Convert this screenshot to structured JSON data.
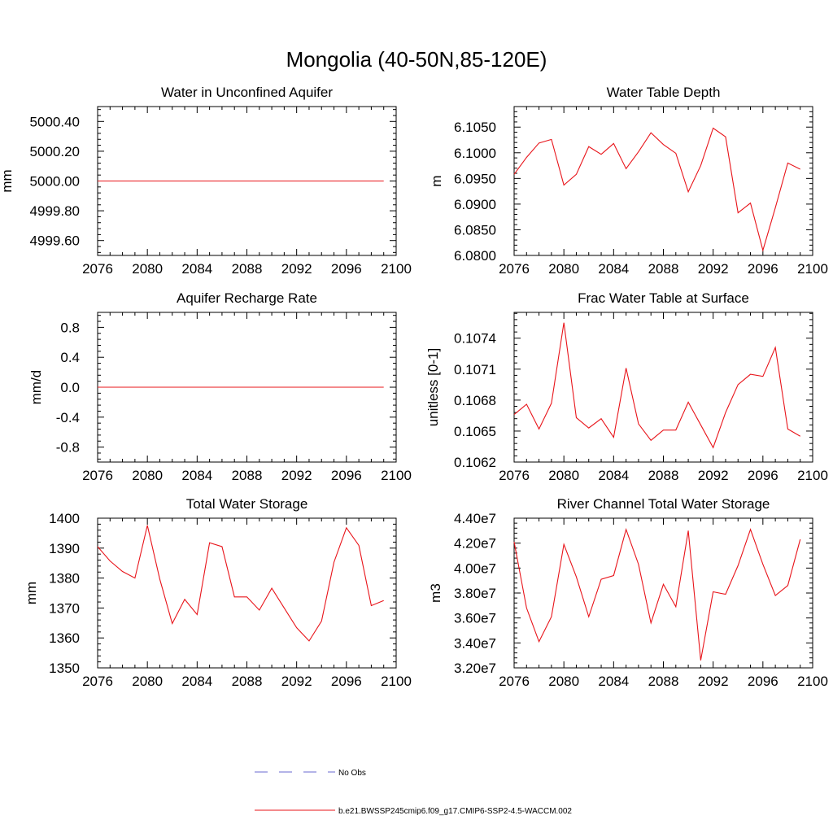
{
  "figure": {
    "title": "Mongolia (40-50N,85-120E)"
  },
  "legend": {
    "items": [
      {
        "label": "No Obs",
        "color": "#6a6ad0",
        "style": "dashed"
      },
      {
        "label": "b.e21.BWSSP245cmip6.f09_g17.CMIP6-SSP2-4.5-WACCM.002",
        "color": "#e8141a",
        "style": "solid"
      }
    ]
  },
  "chart_data": [
    {
      "type": "line",
      "title": "Water in Unconfined Aquifer",
      "ylabel": "mm",
      "xlim": [
        2076,
        2100
      ],
      "ylim": [
        4999.5,
        5000.5
      ],
      "xticks": [
        "2076",
        "2080",
        "2084",
        "2088",
        "2092",
        "2096",
        "2100"
      ],
      "yticks": [
        4999.6,
        4999.8,
        5000.0,
        5000.2,
        5000.4
      ],
      "ytick_labels": [
        "4999.60",
        "4999.80",
        "5000.00",
        "5000.20",
        "5000.40"
      ],
      "x": [
        2076,
        2077,
        2078,
        2079,
        2080,
        2081,
        2082,
        2083,
        2084,
        2085,
        2086,
        2087,
        2088,
        2089,
        2090,
        2091,
        2092,
        2093,
        2094,
        2095,
        2096,
        2097,
        2098,
        2099
      ],
      "series": [
        {
          "color": "#e8141a",
          "values": [
            5000,
            5000,
            5000,
            5000,
            5000,
            5000,
            5000,
            5000,
            5000,
            5000,
            5000,
            5000,
            5000,
            5000,
            5000,
            5000,
            5000,
            5000,
            5000,
            5000,
            5000,
            5000,
            5000,
            5000
          ]
        }
      ]
    },
    {
      "type": "line",
      "title": "Water Table Depth",
      "ylabel": "m",
      "xlim": [
        2076,
        2100
      ],
      "ylim": [
        6.08,
        6.109
      ],
      "xticks": [
        "2076",
        "2080",
        "2084",
        "2088",
        "2092",
        "2096",
        "2100"
      ],
      "yticks": [
        6.08,
        6.085,
        6.09,
        6.095,
        6.1,
        6.105
      ],
      "ytick_labels": [
        "6.0800",
        "6.0850",
        "6.0900",
        "6.0950",
        "6.1000",
        "6.1050"
      ],
      "x": [
        2076,
        2077,
        2078,
        2079,
        2080,
        2081,
        2082,
        2083,
        2084,
        2085,
        2086,
        2087,
        2088,
        2089,
        2090,
        2091,
        2092,
        2093,
        2094,
        2095,
        2096,
        2097,
        2098,
        2099
      ],
      "series": [
        {
          "color": "#e8141a",
          "values": [
            6.0958,
            6.0991,
            6.1019,
            6.1026,
            6.0937,
            6.0958,
            6.1012,
            6.0997,
            6.1018,
            6.0969,
            6.1002,
            6.1039,
            6.1016,
            6.0999,
            6.0924,
            6.0975,
            6.1048,
            6.1031,
            6.0883,
            6.0902,
            6.081,
            6.0893,
            6.098,
            6.0968
          ]
        }
      ]
    },
    {
      "type": "line",
      "title": "Aquifer Recharge Rate",
      "ylabel": "mm/d",
      "xlim": [
        2076,
        2100
      ],
      "ylim": [
        -1.0,
        1.0
      ],
      "xticks": [
        "2076",
        "2080",
        "2084",
        "2088",
        "2092",
        "2096",
        "2100"
      ],
      "yticks": [
        -0.8,
        -0.4,
        0.0,
        0.4,
        0.8
      ],
      "ytick_labels": [
        "-0.8",
        "-0.4",
        "0.0",
        "0.4",
        "0.8"
      ],
      "x": [
        2076,
        2077,
        2078,
        2079,
        2080,
        2081,
        2082,
        2083,
        2084,
        2085,
        2086,
        2087,
        2088,
        2089,
        2090,
        2091,
        2092,
        2093,
        2094,
        2095,
        2096,
        2097,
        2098,
        2099
      ],
      "series": [
        {
          "color": "#e8141a",
          "values": [
            0,
            0,
            0,
            0,
            0,
            0,
            0,
            0,
            0,
            0,
            0,
            0,
            0,
            0,
            0,
            0,
            0,
            0,
            0,
            0,
            0,
            0,
            0,
            0
          ]
        }
      ]
    },
    {
      "type": "line",
      "title": "Frac Water Table at Surface",
      "ylabel": "unitless [0-1]",
      "xlim": [
        2076,
        2100
      ],
      "ylim": [
        0.1062,
        0.10765
      ],
      "xticks": [
        "2076",
        "2080",
        "2084",
        "2088",
        "2092",
        "2096",
        "2100"
      ],
      "yticks": [
        0.1062,
        0.1065,
        0.1068,
        0.1071,
        0.1074
      ],
      "ytick_labels": [
        "0.1062",
        "0.1065",
        "0.1068",
        "0.1071",
        "0.1074"
      ],
      "x": [
        2076,
        2077,
        2078,
        2079,
        2080,
        2081,
        2082,
        2083,
        2084,
        2085,
        2086,
        2087,
        2088,
        2089,
        2090,
        2091,
        2092,
        2093,
        2094,
        2095,
        2096,
        2097,
        2098,
        2099
      ],
      "series": [
        {
          "color": "#e8141a",
          "values": [
            0.10666,
            0.10676,
            0.10652,
            0.10677,
            0.10755,
            0.10663,
            0.10653,
            0.10662,
            0.10644,
            0.10711,
            0.10657,
            0.10641,
            0.10651,
            0.10651,
            0.10678,
            0.10656,
            0.10634,
            0.10668,
            0.10695,
            0.10705,
            0.10703,
            0.10731,
            0.10652,
            0.10645
          ]
        }
      ]
    },
    {
      "type": "line",
      "title": "Total Water Storage",
      "ylabel": "mm",
      "xlim": [
        2076,
        2100
      ],
      "ylim": [
        1350,
        1400
      ],
      "xticks": [
        "2076",
        "2080",
        "2084",
        "2088",
        "2092",
        "2096",
        "2100"
      ],
      "yticks": [
        1350,
        1360,
        1370,
        1380,
        1390,
        1400
      ],
      "ytick_labels": [
        "1350",
        "1360",
        "1370",
        "1380",
        "1390",
        "1400"
      ],
      "x": [
        2076,
        2077,
        2078,
        2079,
        2080,
        2081,
        2082,
        2083,
        2084,
        2085,
        2086,
        2087,
        2088,
        2089,
        2090,
        2091,
        2092,
        2093,
        2094,
        2095,
        2096,
        2097,
        2098,
        2099
      ],
      "series": [
        {
          "color": "#e8141a",
          "values": [
            1390.5,
            1385.7,
            1382.2,
            1380.0,
            1397.6,
            1379.6,
            1364.8,
            1372.9,
            1367.8,
            1391.8,
            1390.5,
            1373.7,
            1373.7,
            1369.3,
            1376.6,
            1370.0,
            1363.4,
            1359.0,
            1365.6,
            1385.3,
            1396.8,
            1390.9,
            1370.8,
            1372.5
          ]
        }
      ]
    },
    {
      "type": "line",
      "title": "River Channel Total Water Storage",
      "ylabel": "m3",
      "xlim": [
        2076,
        2100
      ],
      "ylim": [
        32000000,
        44000000
      ],
      "xticks": [
        "2076",
        "2080",
        "2084",
        "2088",
        "2092",
        "2096",
        "2100"
      ],
      "yticks": [
        32000000,
        34000000,
        36000000,
        38000000,
        40000000,
        42000000,
        44000000
      ],
      "ytick_labels": [
        "3.20e7",
        "3.40e7",
        "3.60e7",
        "3.80e7",
        "4.00e7",
        "4.20e7",
        "4.40e7"
      ],
      "x": [
        2076,
        2077,
        2078,
        2079,
        2080,
        2081,
        2082,
        2083,
        2084,
        2085,
        2086,
        2087,
        2088,
        2089,
        2090,
        2091,
        2092,
        2093,
        2094,
        2095,
        2096,
        2097,
        2098,
        2099
      ],
      "series": [
        {
          "color": "#e8141a",
          "values": [
            42100000,
            36800000,
            34100000,
            36100000,
            41900000,
            39300000,
            36100000,
            39100000,
            39400000,
            43100000,
            40300000,
            35600000,
            38700000,
            36900000,
            43000000,
            32600000,
            38100000,
            37900000,
            40200000,
            43100000,
            40300000,
            37800000,
            38600000,
            42300000
          ]
        }
      ]
    }
  ]
}
